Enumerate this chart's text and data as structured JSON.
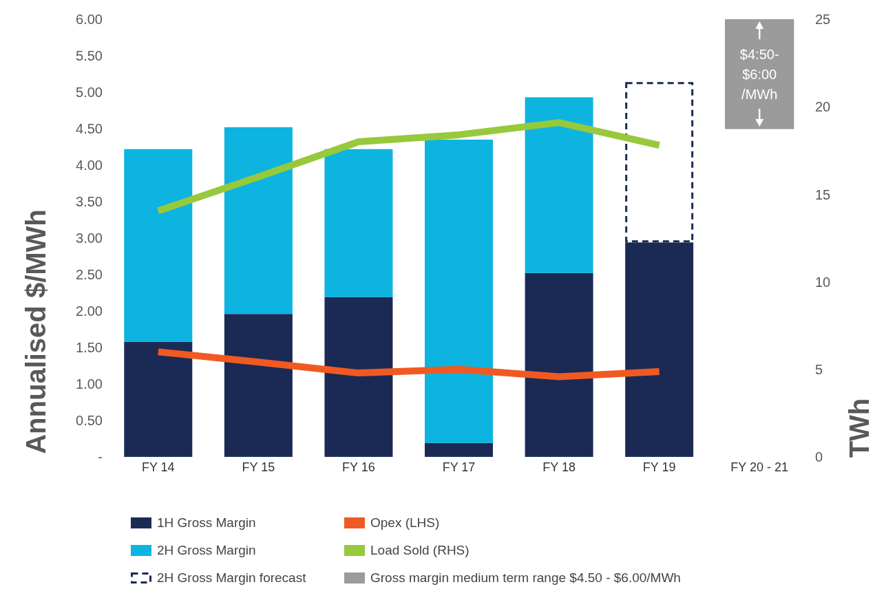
{
  "chart_data": {
    "type": "bar",
    "stacked": true,
    "ylabel": "Annualised $/MWh",
    "y2label": "TWh",
    "categories": [
      "FY 14",
      "FY 15",
      "FY 16",
      "FY 17",
      "FY 18",
      "FY 19",
      "FY 20 - 21"
    ],
    "series": [
      {
        "name": "1H Gross Margin",
        "color": "#1b2a55",
        "values": [
          1.58,
          1.96,
          2.19,
          0.19,
          2.52,
          2.94,
          null
        ]
      },
      {
        "name": "2H Gross Margin",
        "color": "#0db4e0",
        "values": [
          2.64,
          2.56,
          2.03,
          4.16,
          2.41,
          null,
          null
        ]
      },
      {
        "name": "2H Gross Margin forecast",
        "color": "#1b2a55",
        "line_style": "dashed",
        "values": [
          null,
          null,
          null,
          null,
          null,
          2.2,
          null
        ]
      },
      {
        "name": "Gross margin medium term range $4.50 - $6.00/MWh",
        "color": "#9b9b9b",
        "base": [
          null,
          null,
          null,
          null,
          null,
          null,
          4.5
        ],
        "values": [
          null,
          null,
          null,
          null,
          null,
          null,
          1.5
        ]
      },
      {
        "name": "Opex (LHS)",
        "type": "line",
        "color": "#f05a22",
        "values": [
          1.44,
          1.3,
          1.15,
          1.2,
          1.1,
          1.17,
          null
        ]
      },
      {
        "name": "Load Sold (RHS)",
        "type": "line",
        "axis": "y2",
        "color": "#97c93c",
        "values": [
          14.05,
          16.0,
          18.0,
          18.4,
          19.1,
          17.8,
          null
        ]
      }
    ],
    "ylim": [
      0,
      6
    ],
    "yticks": [
      {
        "value": 0,
        "label": "-"
      },
      {
        "value": 0.5,
        "label": "0.50"
      },
      {
        "value": 1,
        "label": "1.00"
      },
      {
        "value": 1.5,
        "label": "1.50"
      },
      {
        "value": 2,
        "label": "2.00"
      },
      {
        "value": 2.5,
        "label": "2.50"
      },
      {
        "value": 3,
        "label": "3.00"
      },
      {
        "value": 3.5,
        "label": "3.50"
      },
      {
        "value": 4,
        "label": "4.00"
      },
      {
        "value": 4.5,
        "label": "4.50"
      },
      {
        "value": 5,
        "label": "5.00"
      },
      {
        "value": 5.5,
        "label": "5.50"
      },
      {
        "value": 6,
        "label": "6.00"
      }
    ],
    "y2lim": [
      0,
      25
    ],
    "y2ticks": [
      0,
      5,
      10,
      15,
      20,
      25
    ],
    "grid": false,
    "legend": "bottom",
    "annotations": [
      "$4:50- $6:00 /MWh"
    ]
  }
}
